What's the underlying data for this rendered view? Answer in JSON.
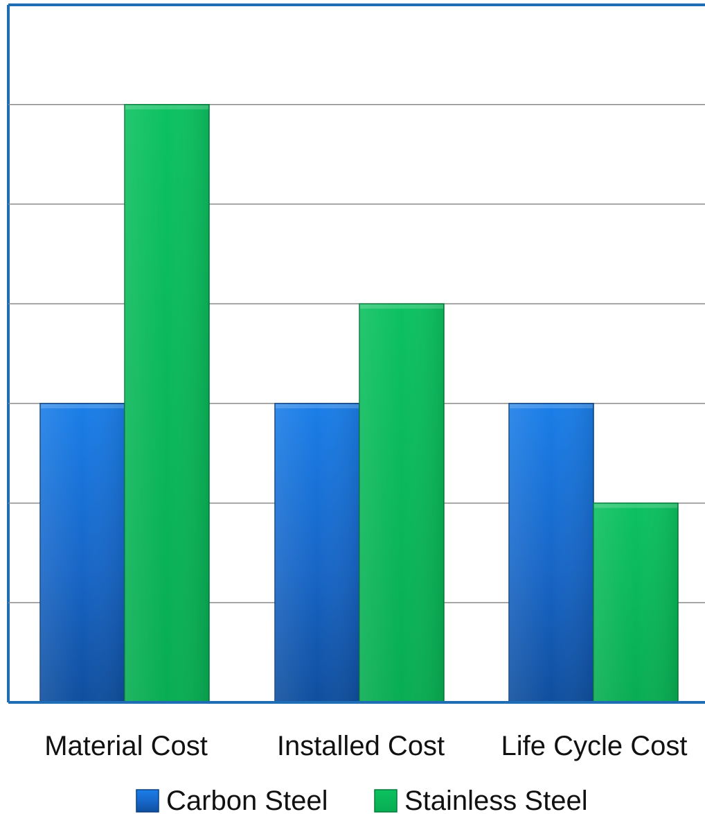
{
  "chart_data": {
    "type": "bar",
    "categories": [
      "Material Cost",
      "Installed Cost",
      "Life Cycle Cost"
    ],
    "series": [
      {
        "name": "Carbon Steel",
        "values": [
          3,
          3,
          3
        ],
        "color": "#1a6fd0"
      },
      {
        "name": "Stainless Steel",
        "values": [
          6,
          4,
          2
        ],
        "color": "#0ab356"
      }
    ],
    "ylim": [
      0,
      7
    ],
    "grid": true,
    "legend_position": "bottom"
  }
}
